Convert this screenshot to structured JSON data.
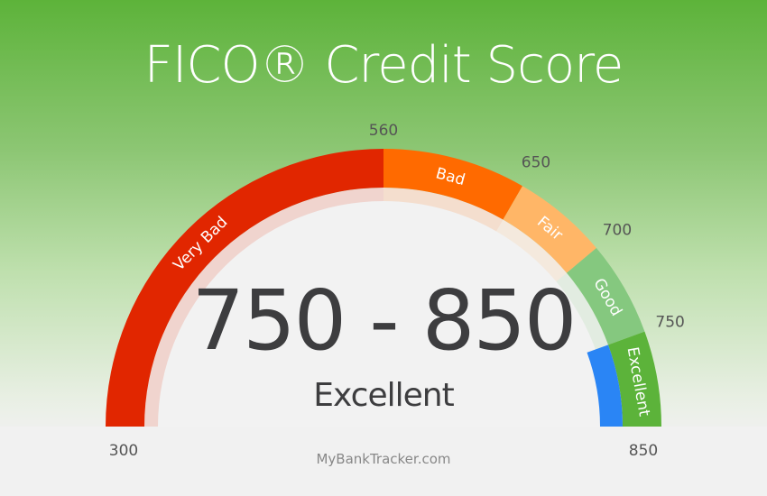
{
  "title": "FICO® Credit Score",
  "chart_data": {
    "type": "gauge",
    "title": "FICO® Credit Score",
    "range": [
      300,
      850
    ],
    "ticks": [
      "300",
      "560",
      "650",
      "700",
      "750",
      "850"
    ],
    "segments": [
      {
        "label": "Very Bad",
        "from": 300,
        "to": 560,
        "color": "#e12600"
      },
      {
        "label": "Bad",
        "from": 560,
        "to": 650,
        "color": "#ff6a00"
      },
      {
        "label": "Fair",
        "from": 650,
        "to": 700,
        "color": "#ffb667"
      },
      {
        "label": "Good",
        "from": 700,
        "to": 750,
        "color": "#85c87f"
      },
      {
        "label": "Excellent",
        "from": 750,
        "to": 850,
        "color": "#5cb33a"
      }
    ],
    "highlighted_segment": "Excellent",
    "indicator_color": "#2a85f5"
  },
  "center": {
    "range": "750 - 850",
    "rating": "Excellent"
  },
  "source": "MyBankTracker.com"
}
